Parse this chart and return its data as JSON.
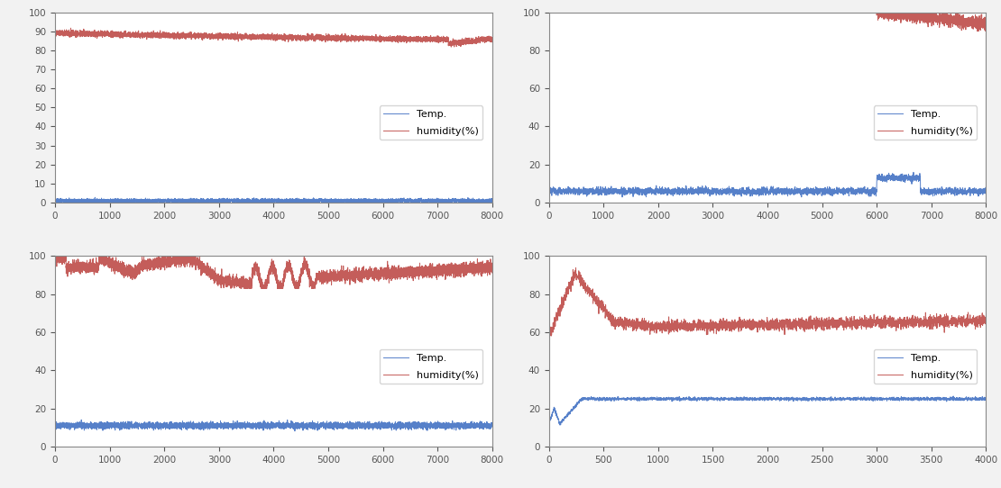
{
  "temp_color": "#4472C4",
  "humidity_color": "#BE4B48",
  "temp_label": "Temp.",
  "humidity_label": "humidity(%)",
  "subplots": [
    {
      "xlim": [
        0,
        8000
      ],
      "ylim": [
        0,
        100
      ],
      "xticks": [
        0,
        1000,
        2000,
        3000,
        4000,
        5000,
        6000,
        7000,
        8000
      ],
      "yticks": [
        0,
        10,
        20,
        30,
        40,
        50,
        60,
        70,
        80,
        90,
        100
      ],
      "n": 8000,
      "temp_level": 1.0,
      "temp_noise": 0.5,
      "hum_start": 89,
      "hum_end": 84,
      "hum_noise": 0.8
    },
    {
      "xlim": [
        0,
        8000
      ],
      "ylim": [
        0,
        100
      ],
      "xticks": [
        0,
        1000,
        2000,
        3000,
        4000,
        5000,
        6000,
        7000,
        8000
      ],
      "yticks": [
        0,
        20,
        40,
        60,
        80,
        100
      ],
      "n": 8000,
      "temp_level": 6,
      "temp_noise": 1.5,
      "hum_flat": 100,
      "hum_drop_start": 6000,
      "hum_drop_end": 95,
      "hum_noise": 1.2
    },
    {
      "xlim": [
        0,
        8000
      ],
      "ylim": [
        0,
        100
      ],
      "xticks": [
        0,
        1000,
        2000,
        3000,
        4000,
        5000,
        6000,
        7000,
        8000
      ],
      "yticks": [
        0,
        20,
        40,
        60,
        80,
        100
      ],
      "n": 8000,
      "temp_level": 11,
      "temp_noise": 0.8,
      "hum_noise": 1.5
    },
    {
      "xlim": [
        0,
        4000
      ],
      "ylim": [
        0,
        100
      ],
      "xticks": [
        0,
        500,
        1000,
        1500,
        2000,
        2500,
        3000,
        3500,
        4000
      ],
      "yticks": [
        0,
        20,
        40,
        60,
        80,
        100
      ],
      "n": 4000,
      "temp_start": 12,
      "temp_peak": 25,
      "temp_noise": 0.4,
      "hum_noise": 2.0
    }
  ]
}
